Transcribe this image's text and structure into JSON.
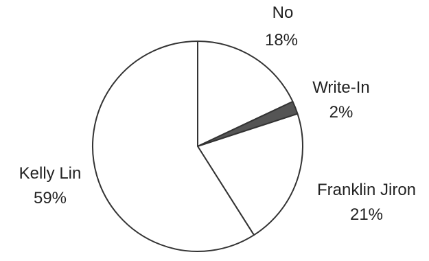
{
  "chart_data": {
    "type": "pie",
    "slices": [
      {
        "label": "No",
        "value": 18,
        "value_label": "18%",
        "fill": "#ffffff"
      },
      {
        "label": "Write-In",
        "value": 2,
        "value_label": "2%",
        "fill": "#555555"
      },
      {
        "label": "Franklin Jiron",
        "value": 21,
        "value_label": "21%",
        "fill": "#ffffff"
      },
      {
        "label": "Kelly Lin",
        "value": 59,
        "value_label": "59%",
        "fill": "#ffffff"
      }
    ],
    "start_angle": "12 o'clock",
    "direction": "clockwise",
    "stroke": "#333333",
    "legend": "none"
  }
}
